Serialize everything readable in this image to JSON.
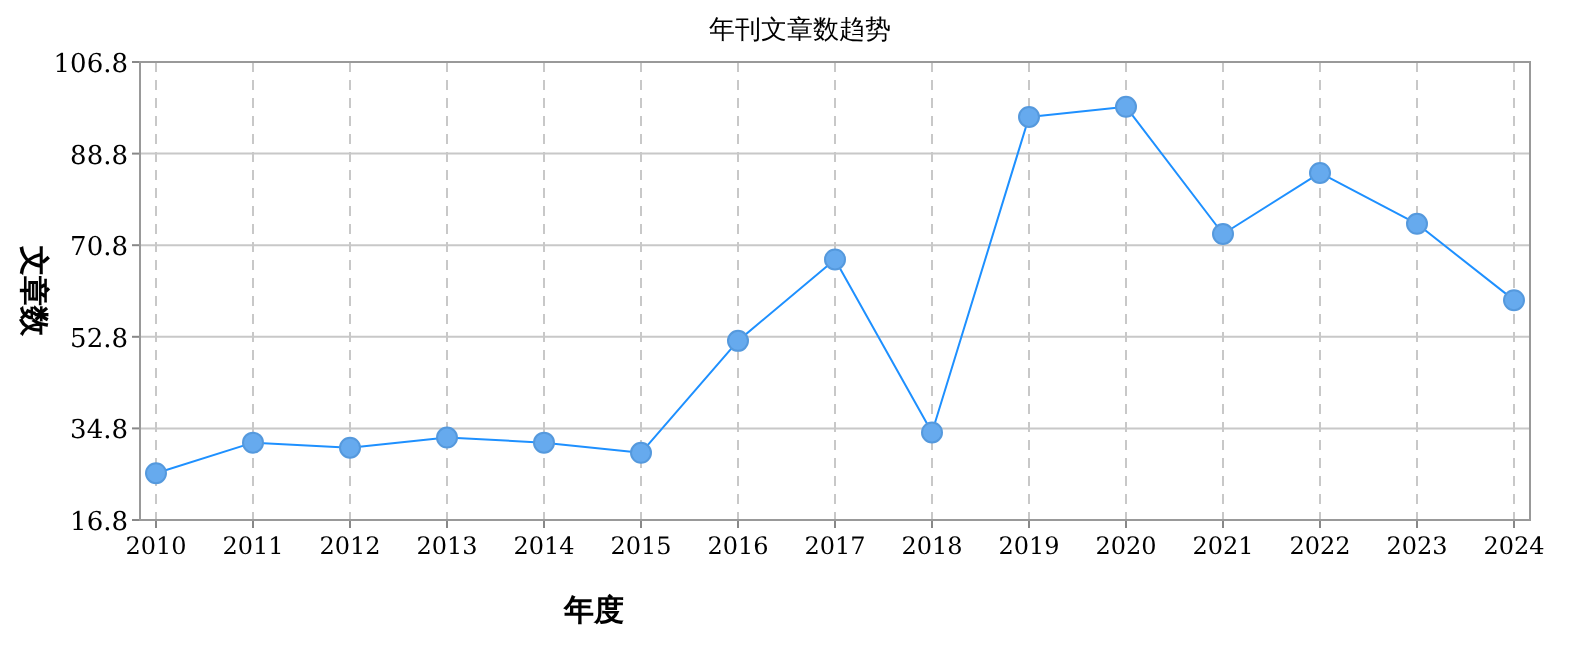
{
  "chart_data": {
    "type": "line",
    "title": "年刊文章数趋势",
    "xlabel": "年度",
    "ylabel": "文章数",
    "categories": [
      "2010",
      "2011",
      "2012",
      "2013",
      "2014",
      "2015",
      "2016",
      "2017",
      "2018",
      "2019",
      "2020",
      "2021",
      "2022",
      "2023",
      "2024"
    ],
    "series": [
      {
        "color": "#1e90ff",
        "values": [
          26,
          32,
          31,
          33,
          32,
          30,
          52,
          68,
          34,
          96,
          98,
          73,
          85,
          75,
          60
        ]
      }
    ],
    "ylim": [
      16.8,
      106.8
    ],
    "yticks": [
      16.8,
      34.8,
      52.8,
      70.8,
      88.8,
      106.8
    ],
    "grid": true,
    "marker": "circle",
    "line_style": "solid"
  }
}
